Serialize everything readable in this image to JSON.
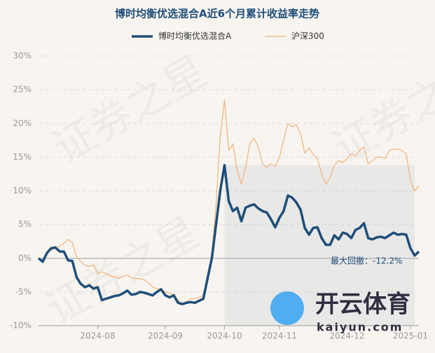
{
  "chart_data": {
    "type": "line",
    "title": "博时均衡优选混合A近6个月累计收益率走势",
    "categories": [
      null,
      null,
      null,
      null,
      null,
      null,
      null,
      null,
      null,
      null,
      null,
      null,
      null,
      null,
      "2024-08",
      null,
      null,
      null,
      null,
      null,
      null,
      null,
      null,
      null,
      null,
      null,
      null,
      null,
      null,
      null,
      "2024-09",
      null,
      null,
      null,
      null,
      null,
      null,
      null,
      null,
      null,
      null,
      null,
      null,
      null,
      "2024-10",
      null,
      null,
      null,
      null,
      null,
      null,
      null,
      null,
      null,
      null,
      null,
      null,
      "2024-11",
      null,
      null,
      null,
      null,
      null,
      null,
      null,
      null,
      null,
      null,
      null,
      null,
      null,
      null,
      null,
      "2024-12",
      null,
      null,
      null,
      null,
      null,
      null,
      null,
      null,
      null,
      null,
      null,
      null,
      null,
      null,
      "2025-01",
      null,
      null
    ],
    "series": [
      {
        "name": "博时均衡优选混合A",
        "color": "#1f4e79",
        "width": 3.5,
        "values": [
          0,
          -0.5,
          0.8,
          1.5,
          1.6,
          1,
          1,
          -0.3,
          -0.4,
          -2.8,
          -3.8,
          -4.3,
          -4,
          -4.5,
          -4.3,
          -6.2,
          -6,
          -5.8,
          -5.6,
          -5.5,
          -5.2,
          -4.8,
          -5.4,
          -5.3,
          -5,
          -5.1,
          -5.3,
          -5.5,
          -5,
          -4.6,
          -5.5,
          -5.8,
          -5.5,
          -6.6,
          -6.8,
          -6.6,
          -6.5,
          -6.6,
          -6.3,
          -6,
          -3,
          0,
          5,
          10,
          13.8,
          8.5,
          7,
          7.5,
          5.5,
          7.5,
          7.8,
          8,
          7.4,
          7,
          6.8,
          5.8,
          4.6,
          6,
          7,
          9.3,
          9,
          8.3,
          7.2,
          4.5,
          3.5,
          4.5,
          4.6,
          3,
          2,
          2,
          3.4,
          2.8,
          3.8,
          3.6,
          3,
          4.2,
          4.5,
          5.2,
          3,
          2.8,
          3.1,
          3.2,
          3,
          3.4,
          3.8,
          3.5,
          3.6,
          3.5,
          1.5,
          0.4,
          1
        ]
      },
      {
        "name": "沪深300",
        "color": "#f0b27a",
        "width": 1.2,
        "values": [
          0,
          -0.4,
          0.8,
          1.2,
          1.5,
          1.8,
          2.2,
          2.8,
          2.3,
          0.2,
          -0.5,
          -1,
          -1.2,
          -1,
          -2.3,
          -2,
          -2.3,
          -2.6,
          -2.8,
          -3,
          -2.7,
          -2.5,
          -2.9,
          -3,
          -3,
          -3.2,
          -3.6,
          -4.3,
          -4.5,
          -4.6,
          -5,
          -5.2,
          -5.4,
          -6.2,
          -6.8,
          -6.4,
          -6,
          -6,
          -5.8,
          -5.5,
          -2.5,
          0.5,
          8,
          18,
          23.5,
          16,
          17,
          13,
          11,
          13.5,
          17,
          17.8,
          16.5,
          14,
          13.5,
          14,
          13.6,
          15,
          17.5,
          20,
          19.5,
          19.8,
          18.5,
          15.6,
          16.4,
          15.4,
          14.8,
          12.5,
          11,
          12,
          13.8,
          14.5,
          14.2,
          14.8,
          15.5,
          15.2,
          16,
          16.5,
          14,
          14.5,
          15,
          15,
          14.8,
          16,
          16.2,
          16.2,
          16,
          15.5,
          11.5,
          10,
          10.8
        ]
      }
    ],
    "ylim": [
      -10,
      30
    ],
    "yticks": [
      {
        "value": -10,
        "label": "-10%"
      },
      {
        "value": -5,
        "label": "-5%"
      },
      {
        "value": 0,
        "label": "0%"
      },
      {
        "value": 5,
        "label": "5%"
      },
      {
        "value": 10,
        "label": "10%"
      },
      {
        "value": 15,
        "label": "15%"
      },
      {
        "value": 20,
        "label": "20%"
      },
      {
        "value": 25,
        "label": "25%"
      },
      {
        "value": 30,
        "label": "30%"
      }
    ],
    "grid": true,
    "legend": "top",
    "annotation": "最大回撤：-12.2%",
    "watermark": [
      "证券之星",
      "开云体育",
      "kaiyun.com"
    ]
  }
}
